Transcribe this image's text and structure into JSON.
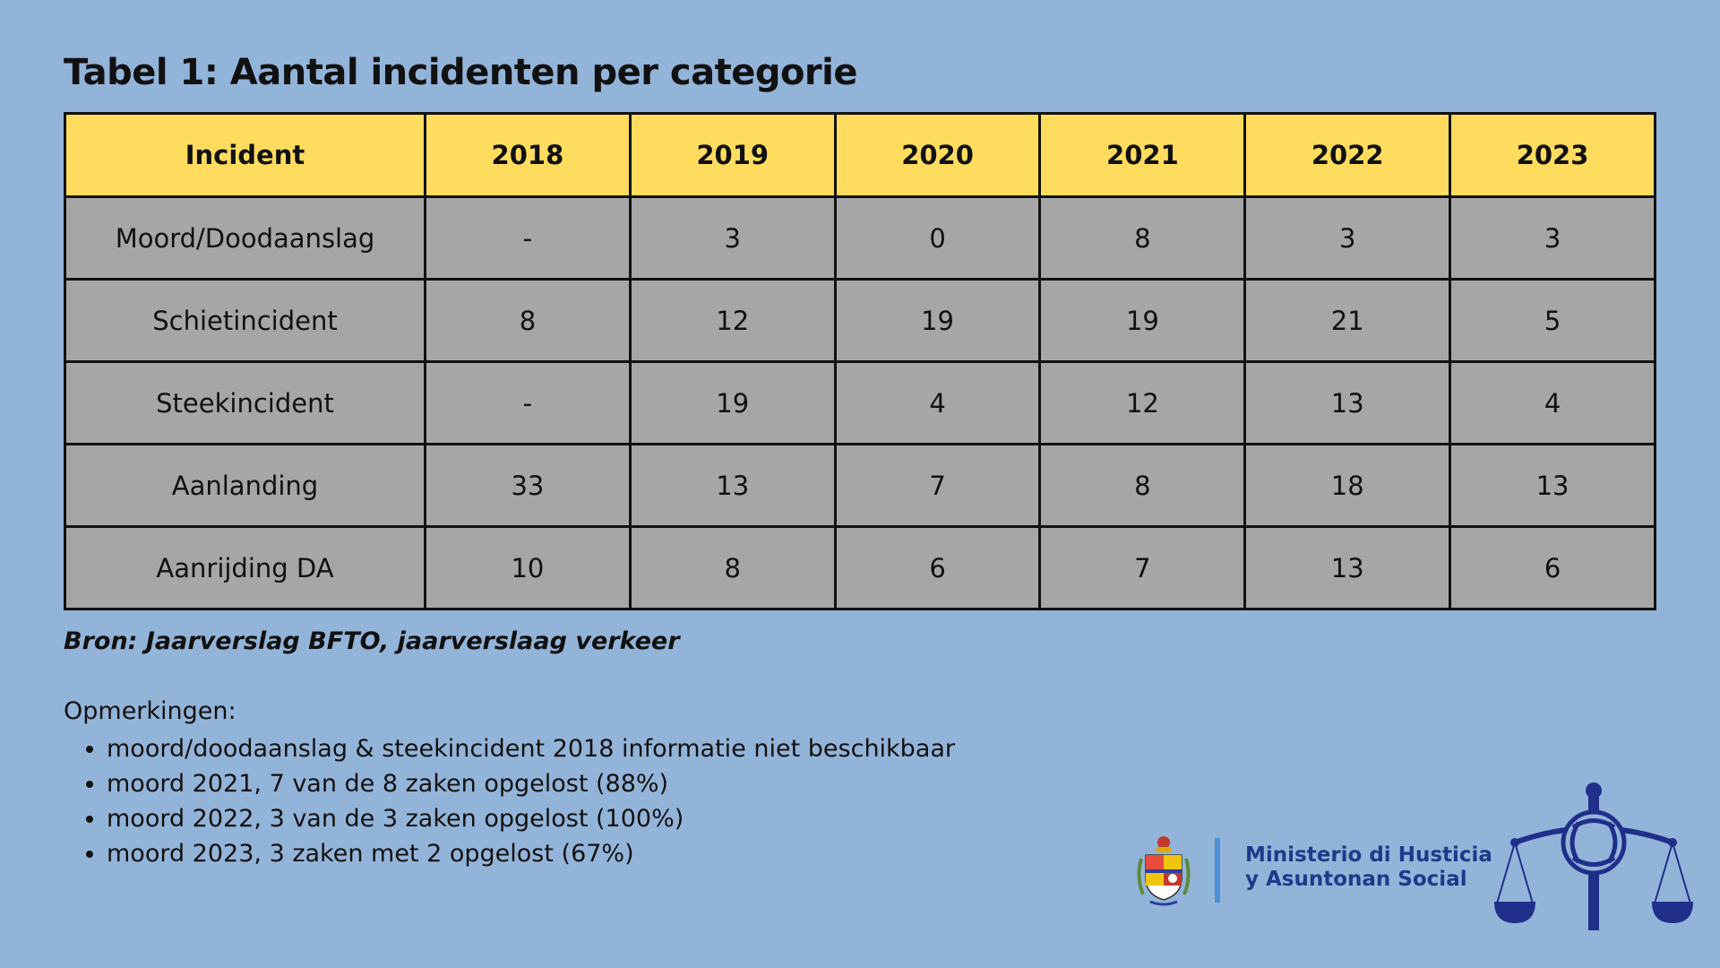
{
  "title": "Tabel 1: Aantal incidenten per categorie",
  "table": {
    "headers": [
      "Incident",
      "2018",
      "2019",
      "2020",
      "2021",
      "2022",
      "2023"
    ],
    "rows": [
      [
        "Moord/Doodaanslag",
        "-",
        "3",
        "0",
        "8",
        "3",
        "3"
      ],
      [
        "Schietincident",
        "8",
        "12",
        "19",
        "19",
        "21",
        "5"
      ],
      [
        "Steekincident",
        "-",
        "19",
        "4",
        "12",
        "13",
        "4"
      ],
      [
        "Aanlanding",
        "33",
        "13",
        "7",
        "8",
        "18",
        "13"
      ],
      [
        "Aanrijding DA",
        "10",
        "8",
        "6",
        "7",
        "13",
        "6"
      ]
    ]
  },
  "source": "Bron: Jaarverslag BFTO, jaarverslaag verkeer",
  "notes": {
    "label": "Opmerkingen:",
    "items": [
      "moord/doodaanslag & steekincident 2018 informatie niet beschikbaar",
      "moord 2021, 7 van de 8 zaken opgelost (88%)",
      "moord 2022, 3 van de 3 zaken opgelost (100%)",
      "moord 2023, 3 zaken met 2 opgelost (67%)"
    ]
  },
  "ministry": {
    "line1": "Ministerio di Husticia",
    "line2": "y Asuntonan Social"
  },
  "colors": {
    "background": "#93b4d9",
    "header_fill": "#ffdc5e",
    "cell_fill": "#a6a6a6",
    "ministry_text": "#1e3a8a",
    "logo_blue": "#1f2f8a"
  },
  "icons": {
    "crest": "coat-of-arms-icon",
    "logo": "justice-scales-icon"
  }
}
